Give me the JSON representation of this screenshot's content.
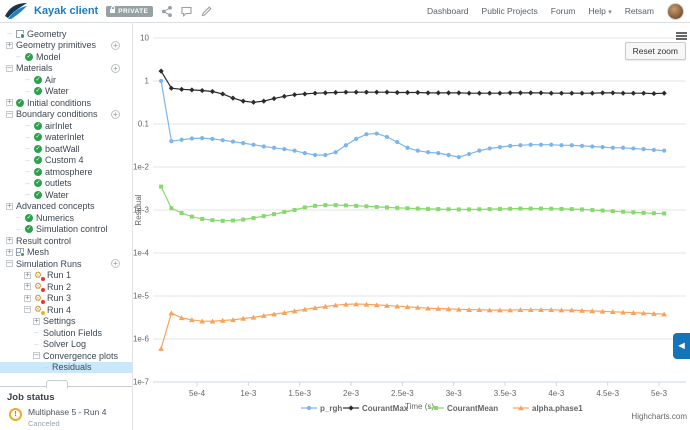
{
  "header": {
    "title": "Kayak client",
    "badge": "PRIVATE",
    "nav_items": [
      "Dashboard",
      "Public Projects",
      "Forum",
      "Help"
    ],
    "user_name": "Retsam"
  },
  "sidebar": {
    "items": [
      {
        "label": "Geometry",
        "level": 0,
        "expander": "dash",
        "icon": "geometry",
        "add_button": false,
        "selected": false
      },
      {
        "label": "Geometry primitives",
        "level": 0,
        "expander": "plus",
        "icon": "none",
        "add_button": true,
        "selected": false
      },
      {
        "label": "Model",
        "level": 1,
        "expander": "dash",
        "icon": "check",
        "add_button": false,
        "selected": false
      },
      {
        "label": "Materials",
        "level": 0,
        "expander": "minus",
        "icon": "none",
        "add_button": true,
        "selected": false
      },
      {
        "label": "Air",
        "level": 2,
        "expander": "dash",
        "icon": "check",
        "add_button": false,
        "selected": false
      },
      {
        "label": "Water",
        "level": 2,
        "expander": "dash",
        "icon": "check",
        "add_button": false,
        "selected": false
      },
      {
        "label": "Initial conditions",
        "level": 0,
        "expander": "plus",
        "icon": "check",
        "add_button": false,
        "selected": false
      },
      {
        "label": "Boundary conditions",
        "level": 0,
        "expander": "minus",
        "icon": "none",
        "add_button": true,
        "selected": false
      },
      {
        "label": "airInlet",
        "level": 2,
        "expander": "dash",
        "icon": "check",
        "add_button": false,
        "selected": false
      },
      {
        "label": "waterInlet",
        "level": 2,
        "expander": "dash",
        "icon": "check",
        "add_button": false,
        "selected": false
      },
      {
        "label": "boatWall",
        "level": 2,
        "expander": "dash",
        "icon": "check",
        "add_button": false,
        "selected": false
      },
      {
        "label": "Custom 4",
        "level": 2,
        "expander": "dash",
        "icon": "check",
        "add_button": false,
        "selected": false
      },
      {
        "label": "atmosphere",
        "level": 2,
        "expander": "dash",
        "icon": "check",
        "add_button": false,
        "selected": false
      },
      {
        "label": "outlets",
        "level": 2,
        "expander": "dash",
        "icon": "check",
        "add_button": false,
        "selected": false
      },
      {
        "label": "Water",
        "level": 2,
        "expander": "dash",
        "icon": "check",
        "add_button": false,
        "selected": false
      },
      {
        "label": "Advanced concepts",
        "level": 0,
        "expander": "plus",
        "icon": "none",
        "add_button": false,
        "selected": false
      },
      {
        "label": "Numerics",
        "level": 1,
        "expander": "dash",
        "icon": "check",
        "add_button": false,
        "selected": false
      },
      {
        "label": "Simulation control",
        "level": 1,
        "expander": "dash",
        "icon": "check",
        "add_button": false,
        "selected": false
      },
      {
        "label": "Result control",
        "level": 0,
        "expander": "plus",
        "icon": "none",
        "add_button": false,
        "selected": false
      },
      {
        "label": "Mesh",
        "level": 0,
        "expander": "plus",
        "icon": "mesh",
        "add_button": false,
        "selected": false
      },
      {
        "label": "Simulation Runs",
        "level": 0,
        "expander": "minus",
        "icon": "none",
        "add_button": true,
        "selected": false
      },
      {
        "label": "Run 1",
        "level": 2,
        "expander": "plus",
        "icon": "gear-failed",
        "add_button": false,
        "selected": false
      },
      {
        "label": "Run 2",
        "level": 2,
        "expander": "plus",
        "icon": "gear-failed",
        "add_button": false,
        "selected": false
      },
      {
        "label": "Run 3",
        "level": 2,
        "expander": "plus",
        "icon": "gear-failed",
        "add_button": false,
        "selected": false
      },
      {
        "label": "Run 4",
        "level": 2,
        "expander": "minus",
        "icon": "gear-warn",
        "add_button": false,
        "selected": false
      },
      {
        "label": "Settings",
        "level": 3,
        "expander": "plus",
        "icon": "none",
        "add_button": false,
        "selected": false
      },
      {
        "label": "Solution Fields",
        "level": 3,
        "expander": "dash",
        "icon": "none",
        "add_button": false,
        "selected": false
      },
      {
        "label": "Solver Log",
        "level": 3,
        "expander": "dash",
        "icon": "none",
        "add_button": false,
        "selected": false
      },
      {
        "label": "Convergence plots",
        "level": 3,
        "expander": "minus",
        "icon": "none",
        "add_button": false,
        "selected": false
      },
      {
        "label": "Residuals",
        "level": 4,
        "expander": "dash",
        "icon": "none",
        "add_button": false,
        "selected": true
      }
    ]
  },
  "job_status": {
    "title": "Job status",
    "job_name": "Multiphase 5 - Run 4",
    "job_state": "Canceled"
  },
  "chart": {
    "reset_zoom_label": "Reset zoom",
    "credit": "Highcharts.com"
  },
  "chart_data": {
    "type": "line",
    "title": "",
    "xlabel": "Time (s)",
    "ylabel": "Residual",
    "y_scale": "log",
    "grid": "horizontal",
    "legend_position": "bottom",
    "x_ticks": [
      {
        "label": "5e-4",
        "value": 0.0005
      },
      {
        "label": "1e-3",
        "value": 0.001
      },
      {
        "label": "1.5e-3",
        "value": 0.0015
      },
      {
        "label": "2e-3",
        "value": 0.002
      },
      {
        "label": "2.5e-3",
        "value": 0.0025
      },
      {
        "label": "3e-3",
        "value": 0.003
      },
      {
        "label": "3.5e-3",
        "value": 0.0035
      },
      {
        "label": "4e-3",
        "value": 0.004
      },
      {
        "label": "4.5e-3",
        "value": 0.0045
      },
      {
        "label": "5e-3",
        "value": 0.005
      }
    ],
    "y_ticks": [
      {
        "label": "10",
        "value": 10
      },
      {
        "label": "1",
        "value": 1
      },
      {
        "label": "0.1",
        "value": 0.1
      },
      {
        "label": "1e-2",
        "value": 0.01
      },
      {
        "label": "1e-3",
        "value": 0.001
      },
      {
        "label": "1e-4",
        "value": 0.0001
      },
      {
        "label": "1e-5",
        "value": 1e-05
      },
      {
        "label": "1e-6",
        "value": 1e-06
      },
      {
        "label": "1e-7",
        "value": 1e-07
      }
    ],
    "x": [
      0.00015,
      0.00025,
      0.00035,
      0.00045,
      0.00055,
      0.00065,
      0.00075,
      0.00085,
      0.00095,
      0.00105,
      0.00115,
      0.00125,
      0.00135,
      0.00145,
      0.00155,
      0.00165,
      0.00175,
      0.00185,
      0.00195,
      0.00205,
      0.00215,
      0.00225,
      0.00235,
      0.00245,
      0.00255,
      0.00265,
      0.00275,
      0.00285,
      0.00295,
      0.00305,
      0.00315,
      0.00325,
      0.00335,
      0.00345,
      0.00355,
      0.00365,
      0.00375,
      0.00385,
      0.00395,
      0.00405,
      0.00415,
      0.00425,
      0.00435,
      0.00445,
      0.00455,
      0.00465,
      0.00475,
      0.00485,
      0.00495,
      0.00505
    ],
    "series": [
      {
        "name": "p_rgh",
        "color": "#7cb5ec",
        "marker": "circle",
        "values": [
          1.0,
          0.04,
          0.043,
          0.046,
          0.047,
          0.045,
          0.042,
          0.039,
          0.036,
          0.033,
          0.03,
          0.028,
          0.026,
          0.024,
          0.021,
          0.019,
          0.019,
          0.022,
          0.032,
          0.045,
          0.058,
          0.06,
          0.05,
          0.038,
          0.028,
          0.024,
          0.022,
          0.021,
          0.019,
          0.017,
          0.02,
          0.024,
          0.027,
          0.029,
          0.031,
          0.032,
          0.033,
          0.033,
          0.033,
          0.032,
          0.032,
          0.031,
          0.03,
          0.029,
          0.028,
          0.028,
          0.027,
          0.026,
          0.025,
          0.024
        ]
      },
      {
        "name": "CourantMax",
        "color": "#2b2b2e",
        "marker": "diamond",
        "values": [
          1.7,
          0.68,
          0.64,
          0.62,
          0.6,
          0.57,
          0.5,
          0.4,
          0.34,
          0.32,
          0.34,
          0.39,
          0.44,
          0.48,
          0.5,
          0.52,
          0.53,
          0.54,
          0.55,
          0.55,
          0.55,
          0.55,
          0.55,
          0.54,
          0.54,
          0.54,
          0.53,
          0.53,
          0.53,
          0.53,
          0.52,
          0.52,
          0.52,
          0.52,
          0.53,
          0.53,
          0.53,
          0.53,
          0.52,
          0.52,
          0.52,
          0.52,
          0.52,
          0.53,
          0.53,
          0.52,
          0.52,
          0.52,
          0.51,
          0.52
        ]
      },
      {
        "name": "CourantMean",
        "color": "#87d96c",
        "marker": "square",
        "values": [
          0.0035,
          0.0011,
          0.00085,
          0.0007,
          0.00062,
          0.00058,
          0.00056,
          0.00057,
          0.0006,
          0.00065,
          0.00072,
          0.0008,
          0.0009,
          0.001,
          0.00115,
          0.00125,
          0.0013,
          0.0013,
          0.00128,
          0.00125,
          0.00122,
          0.00118,
          0.00115,
          0.00112,
          0.0011,
          0.00108,
          0.00106,
          0.00105,
          0.00104,
          0.00103,
          0.00103,
          0.00104,
          0.00105,
          0.00106,
          0.00107,
          0.00108,
          0.00108,
          0.00108,
          0.00107,
          0.00106,
          0.00105,
          0.00103,
          0.001,
          0.00097,
          0.00094,
          0.00091,
          0.00088,
          0.00086,
          0.00084,
          0.00083
        ]
      },
      {
        "name": "alpha.phase1",
        "color": "#f7a35c",
        "marker": "triangle",
        "values": [
          6e-07,
          4e-06,
          3.1e-06,
          2.8e-06,
          2.6e-06,
          2.6e-06,
          2.7e-06,
          2.8e-06,
          3e-06,
          3.2e-06,
          3.5e-06,
          3.8e-06,
          4.1e-06,
          4.5e-06,
          4.9e-06,
          5.3e-06,
          5.7e-06,
          6.1e-06,
          6.4e-06,
          6.5e-06,
          6.4e-06,
          6.2e-06,
          6e-06,
          5.8e-06,
          5.6e-06,
          5.4e-06,
          5.2e-06,
          5.1e-06,
          5e-06,
          4.9e-06,
          4.8e-06,
          4.8e-06,
          4.7e-06,
          4.7e-06,
          4.7e-06,
          4.8e-06,
          4.8e-06,
          4.8e-06,
          4.8e-06,
          4.7e-06,
          4.7e-06,
          4.6e-06,
          4.5e-06,
          4.4e-06,
          4.3e-06,
          4.2e-06,
          4.1e-06,
          4e-06,
          3.9e-06,
          3.8e-06
        ]
      }
    ]
  }
}
